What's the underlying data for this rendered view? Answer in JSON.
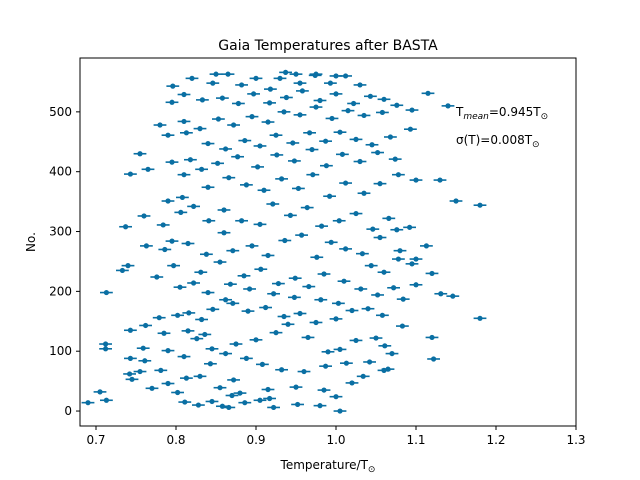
{
  "chart_data": {
    "type": "scatter",
    "title": "Gaia Temperatures after BASTA",
    "xlabel": "Temperature/T",
    "xlabel_sub": "⊙",
    "ylabel": "No.",
    "xlim": [
      0.68,
      1.3
    ],
    "ylim": [
      -25,
      590
    ],
    "xticks": [
      "0.7",
      "0.8",
      "0.9",
      "1.0",
      "1.1",
      "1.2",
      "1.3"
    ],
    "xtick_values": [
      0.7,
      0.8,
      0.9,
      1.0,
      1.1,
      1.2,
      1.3
    ],
    "yticks": [
      "0",
      "100",
      "200",
      "300",
      "400",
      "500"
    ],
    "ytick_values": [
      0,
      100,
      200,
      300,
      400,
      500
    ],
    "grid": false,
    "marker_color": "#0a6fa3",
    "annotations": {
      "mean_prefix": "T",
      "mean_sub": "mean",
      "mean_value": "=0.945T",
      "mean_sun": "⊙",
      "sigma_value": "σ(T)=0.008T",
      "sigma_sun": "⊙"
    },
    "series_error_halfwidth": 0.008,
    "points": [
      [
        0.69,
        14
      ],
      [
        0.705,
        32
      ],
      [
        0.713,
        18
      ],
      [
        1.005,
        0
      ],
      [
        0.828,
        10
      ],
      [
        0.858,
        8
      ],
      [
        0.866,
        6
      ],
      [
        0.845,
        16
      ],
      [
        0.811,
        15
      ],
      [
        0.886,
        14
      ],
      [
        0.922,
        6
      ],
      [
        0.917,
        21
      ],
      [
        0.952,
        11
      ],
      [
        0.98,
        9
      ],
      [
        1.0,
        24
      ],
      [
        0.985,
        35
      ],
      [
        0.915,
        36
      ],
      [
        0.88,
        30
      ],
      [
        0.87,
        26
      ],
      [
        0.855,
        39
      ],
      [
        0.802,
        31
      ],
      [
        0.77,
        38
      ],
      [
        0.745,
        53
      ],
      [
        0.742,
        62
      ],
      [
        0.79,
        46
      ],
      [
        0.813,
        55
      ],
      [
        0.781,
        68
      ],
      [
        0.755,
        66
      ],
      [
        0.743,
        88
      ],
      [
        0.761,
        84
      ],
      [
        0.81,
        91
      ],
      [
        0.843,
        79
      ],
      [
        0.862,
        96
      ],
      [
        0.888,
        88
      ],
      [
        0.908,
        78
      ],
      [
        0.932,
        69
      ],
      [
        0.96,
        66
      ],
      [
        0.987,
        75
      ],
      [
        1.013,
        80
      ],
      [
        1.042,
        82
      ],
      [
        1.065,
        70
      ],
      [
        1.06,
        68
      ],
      [
        1.034,
        58
      ],
      [
        1.02,
        47
      ],
      [
        0.95,
        40
      ],
      [
        0.905,
        18
      ],
      [
        0.872,
        52
      ],
      [
        0.83,
        58
      ],
      [
        0.712,
        104
      ],
      [
        0.712,
        112
      ],
      [
        0.759,
        105
      ],
      [
        0.762,
        143
      ],
      [
        0.743,
        135
      ],
      [
        0.785,
        130
      ],
      [
        0.815,
        134
      ],
      [
        0.79,
        101
      ],
      [
        0.826,
        121
      ],
      [
        0.836,
        128
      ],
      [
        0.845,
        104
      ],
      [
        0.875,
        112
      ],
      [
        0.9,
        119
      ],
      [
        0.925,
        131
      ],
      [
        0.94,
        145
      ],
      [
        0.965,
        123
      ],
      [
        0.99,
        99
      ],
      [
        1.005,
        103
      ],
      [
        1.025,
        118
      ],
      [
        1.05,
        122
      ],
      [
        1.061,
        109
      ],
      [
        1.12,
        123
      ],
      [
        1.122,
        87
      ],
      [
        1.07,
        96
      ],
      [
        1.083,
        142
      ],
      [
        1.18,
        155
      ],
      [
        0.779,
        156
      ],
      [
        0.802,
        160
      ],
      [
        0.816,
        164
      ],
      [
        0.832,
        153
      ],
      [
        0.846,
        170
      ],
      [
        0.871,
        180
      ],
      [
        0.89,
        167
      ],
      [
        0.912,
        173
      ],
      [
        0.935,
        158
      ],
      [
        0.955,
        163
      ],
      [
        0.975,
        148
      ],
      [
        1.0,
        154
      ],
      [
        1.02,
        168
      ],
      [
        1.04,
        171
      ],
      [
        1.058,
        160
      ],
      [
        1.003,
        180
      ],
      [
        0.981,
        186
      ],
      [
        0.948,
        190
      ],
      [
        0.922,
        196
      ],
      [
        0.892,
        204
      ],
      [
        0.862,
        186
      ],
      [
        0.84,
        198
      ],
      [
        0.822,
        214
      ],
      [
        0.805,
        207
      ],
      [
        0.713,
        198
      ],
      [
        0.733,
        235
      ],
      [
        0.74,
        243
      ],
      [
        0.776,
        224
      ],
      [
        0.797,
        243
      ],
      [
        0.831,
        232
      ],
      [
        0.855,
        249
      ],
      [
        0.868,
        212
      ],
      [
        0.885,
        226
      ],
      [
        0.906,
        237
      ],
      [
        0.928,
        213
      ],
      [
        0.949,
        222
      ],
      [
        0.966,
        208
      ],
      [
        0.985,
        229
      ],
      [
        1.01,
        217
      ],
      [
        1.031,
        204
      ],
      [
        1.052,
        194
      ],
      [
        1.072,
        206
      ],
      [
        1.084,
        187
      ],
      [
        1.1,
        211
      ],
      [
        1.131,
        196
      ],
      [
        1.146,
        192
      ],
      [
        1.12,
        230
      ],
      [
        1.095,
        246
      ],
      [
        1.078,
        254
      ],
      [
        1.06,
        232
      ],
      [
        1.044,
        243
      ],
      [
        0.737,
        308
      ],
      [
        0.763,
        276
      ],
      [
        0.786,
        270
      ],
      [
        0.795,
        284
      ],
      [
        0.815,
        280
      ],
      [
        0.838,
        262
      ],
      [
        0.86,
        298
      ],
      [
        0.871,
        268
      ],
      [
        0.895,
        276
      ],
      [
        0.915,
        260
      ],
      [
        0.936,
        285
      ],
      [
        0.957,
        294
      ],
      [
        0.976,
        257
      ],
      [
        0.994,
        282
      ],
      [
        1.012,
        271
      ],
      [
        1.033,
        263
      ],
      [
        1.055,
        290
      ],
      [
        1.076,
        303
      ],
      [
        1.1,
        254
      ],
      [
        1.113,
        276
      ],
      [
        1.08,
        268
      ],
      [
        0.76,
        326
      ],
      [
        0.784,
        311
      ],
      [
        0.806,
        332
      ],
      [
        0.822,
        342
      ],
      [
        0.841,
        318
      ],
      [
        0.86,
        336
      ],
      [
        0.882,
        318
      ],
      [
        0.905,
        312
      ],
      [
        0.921,
        346
      ],
      [
        0.943,
        327
      ],
      [
        0.964,
        340
      ],
      [
        0.982,
        309
      ],
      [
        1.004,
        318
      ],
      [
        1.025,
        330
      ],
      [
        1.046,
        304
      ],
      [
        1.066,
        322
      ],
      [
        1.092,
        307
      ],
      [
        1.15,
        351
      ],
      [
        1.18,
        344
      ],
      [
        0.79,
        351
      ],
      [
        0.808,
        357
      ],
      [
        0.84,
        374
      ],
      [
        0.866,
        390
      ],
      [
        0.888,
        378
      ],
      [
        0.91,
        369
      ],
      [
        0.932,
        388
      ],
      [
        0.953,
        372
      ],
      [
        0.971,
        395
      ],
      [
        0.992,
        359
      ],
      [
        1.012,
        381
      ],
      [
        1.035,
        364
      ],
      [
        1.055,
        380
      ],
      [
        1.078,
        395
      ],
      [
        1.1,
        386
      ],
      [
        1.13,
        386
      ],
      [
        0.743,
        396
      ],
      [
        0.765,
        404
      ],
      [
        0.81,
        395
      ],
      [
        0.832,
        404
      ],
      [
        0.852,
        414
      ],
      [
        0.877,
        425
      ],
      [
        0.902,
        408
      ],
      [
        0.926,
        428
      ],
      [
        0.948,
        418
      ],
      [
        0.97,
        437
      ],
      [
        0.988,
        410
      ],
      [
        1.008,
        429
      ],
      [
        1.03,
        417
      ],
      [
        1.052,
        432
      ],
      [
        1.074,
        421
      ],
      [
        0.795,
        416
      ],
      [
        0.818,
        420
      ],
      [
        0.755,
        430
      ],
      [
        0.84,
        447
      ],
      [
        0.862,
        438
      ],
      [
        0.886,
        452
      ],
      [
        0.905,
        443
      ],
      [
        0.925,
        461
      ],
      [
        0.946,
        448
      ],
      [
        0.967,
        465
      ],
      [
        0.987,
        451
      ],
      [
        1.005,
        466
      ],
      [
        1.025,
        454
      ],
      [
        1.045,
        445
      ],
      [
        1.068,
        458
      ],
      [
        1.093,
        471
      ],
      [
        0.79,
        461
      ],
      [
        0.813,
        465
      ],
      [
        0.78,
        478
      ],
      [
        0.81,
        484
      ],
      [
        0.83,
        472
      ],
      [
        0.853,
        488
      ],
      [
        0.872,
        478
      ],
      [
        0.895,
        492
      ],
      [
        0.915,
        483
      ],
      [
        0.935,
        500
      ],
      [
        0.955,
        495
      ],
      [
        0.975,
        508
      ],
      [
        0.995,
        489
      ],
      [
        1.015,
        502
      ],
      [
        1.035,
        494
      ],
      [
        1.058,
        499
      ],
      [
        1.076,
        511
      ],
      [
        1.095,
        503
      ],
      [
        1.115,
        531
      ],
      [
        1.14,
        510
      ],
      [
        0.795,
        516
      ],
      [
        0.81,
        529
      ],
      [
        0.833,
        520
      ],
      [
        0.858,
        523
      ],
      [
        0.878,
        514
      ],
      [
        0.897,
        530
      ],
      [
        0.917,
        515
      ],
      [
        0.938,
        524
      ],
      [
        0.958,
        535
      ],
      [
        0.98,
        519
      ],
      [
        1.0,
        530
      ],
      [
        1.022,
        514
      ],
      [
        1.043,
        526
      ],
      [
        1.06,
        521
      ],
      [
        0.796,
        543
      ],
      [
        0.82,
        556
      ],
      [
        0.846,
        548
      ],
      [
        0.865,
        563
      ],
      [
        0.882,
        545
      ],
      [
        0.9,
        556
      ],
      [
        0.918,
        538
      ],
      [
        0.937,
        566
      ],
      [
        0.955,
        548
      ],
      [
        0.974,
        561
      ],
      [
        0.993,
        548
      ],
      [
        1.012,
        560
      ],
      [
        1.03,
        545
      ],
      [
        0.85,
        563
      ],
      [
        0.95,
        563
      ],
      [
        0.975,
        563
      ],
      [
        1.0,
        560
      ],
      [
        0.93,
        556
      ]
    ]
  }
}
